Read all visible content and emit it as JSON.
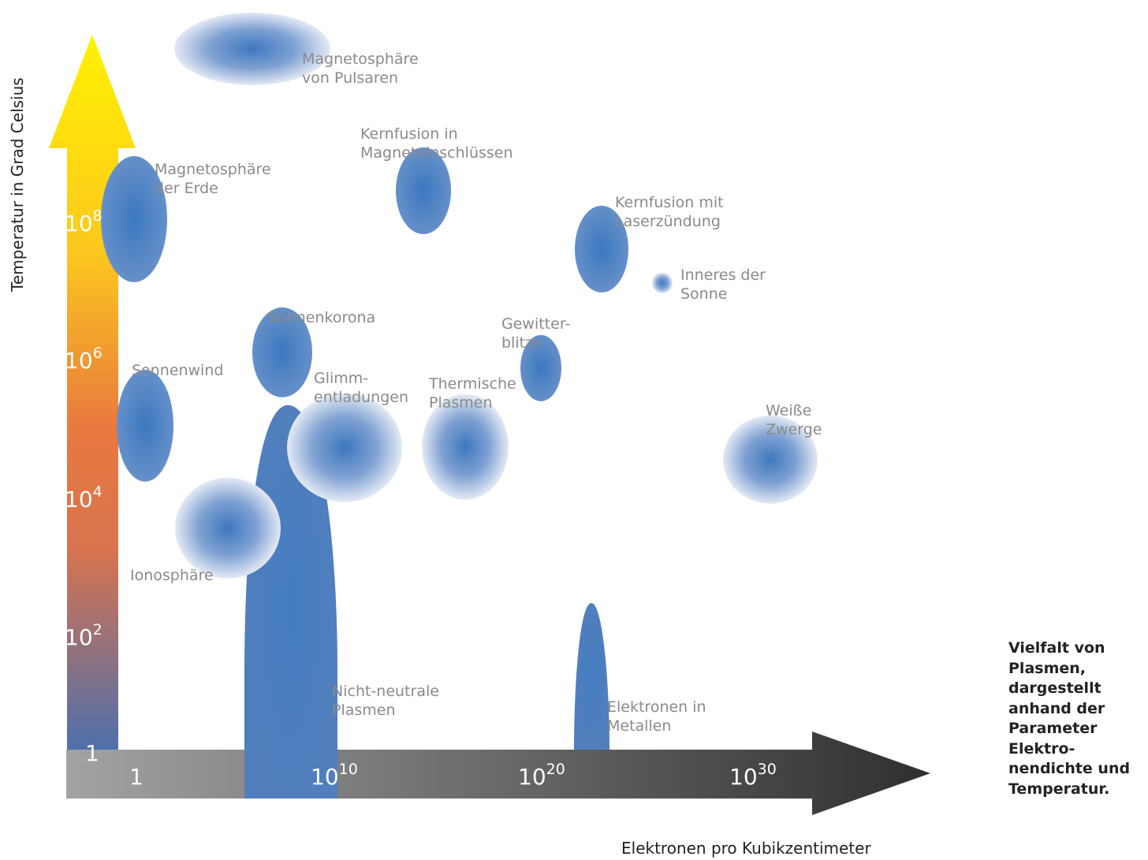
{
  "axes": {
    "y_title": "Temperatur in Grad Celsius",
    "x_title": "Elektronen pro Kubikzentimeter",
    "y_ticks": [
      {
        "base": "1",
        "exp": ""
      },
      {
        "base": "10",
        "exp": "2"
      },
      {
        "base": "10",
        "exp": "4"
      },
      {
        "base": "10",
        "exp": "6"
      },
      {
        "base": "10",
        "exp": "8"
      }
    ],
    "x_ticks": [
      {
        "base": "1",
        "exp": ""
      },
      {
        "base": "10",
        "exp": "10"
      },
      {
        "base": "10",
        "exp": "20"
      },
      {
        "base": "10",
        "exp": "30"
      }
    ]
  },
  "regions": [
    {
      "id": "pulsar-magnetosphere",
      "lines": [
        "Magnetosphäre",
        "von Pulsaren"
      ]
    },
    {
      "id": "magnetic-fusion",
      "lines": [
        "Kernfusion in",
        "Magneteinschlüssen"
      ]
    },
    {
      "id": "earth-magnetosphere",
      "lines": [
        "Magnetosphäre",
        "der Erde"
      ]
    },
    {
      "id": "laser-fusion",
      "lines": [
        "Kernfusion mit",
        "Laserzündung"
      ]
    },
    {
      "id": "solar-interior",
      "lines": [
        "Inneres der",
        "Sonne"
      ]
    },
    {
      "id": "solar-corona",
      "lines": [
        "Sonnenkorona"
      ]
    },
    {
      "id": "lightning",
      "lines": [
        "Gewitter-",
        "blitze"
      ]
    },
    {
      "id": "solar-wind",
      "lines": [
        "Sonnenwind"
      ]
    },
    {
      "id": "glow-discharge",
      "lines": [
        "Glimm-",
        "entladungen"
      ]
    },
    {
      "id": "thermal-plasma",
      "lines": [
        "Thermische",
        "Plasmen"
      ]
    },
    {
      "id": "white-dwarfs",
      "lines": [
        "Weiße",
        "Zwerge"
      ]
    },
    {
      "id": "ionosphere",
      "lines": [
        "Ionosphäre"
      ]
    },
    {
      "id": "non-neutral-plasma",
      "lines": [
        "Nicht-neutrale",
        "Plasmen"
      ]
    },
    {
      "id": "metal-electrons",
      "lines": [
        "Elektronen in",
        "Metallen"
      ]
    }
  ],
  "caption": [
    "Vielfalt von",
    "Plasmen,",
    "dargestellt",
    "anhand der",
    "Parameter",
    "Elektro-",
    "nendichte und",
    "Temperatur."
  ],
  "colors": {
    "region_blue": "#4a7fbe",
    "region_fade": "#dfe7f4",
    "y_axis_top": "#ffee00",
    "y_axis_mid": "#e07845",
    "y_axis_bottom": "#4f72aa",
    "x_axis_left": "#a5a5a5",
    "x_axis_right": "#333333"
  }
}
